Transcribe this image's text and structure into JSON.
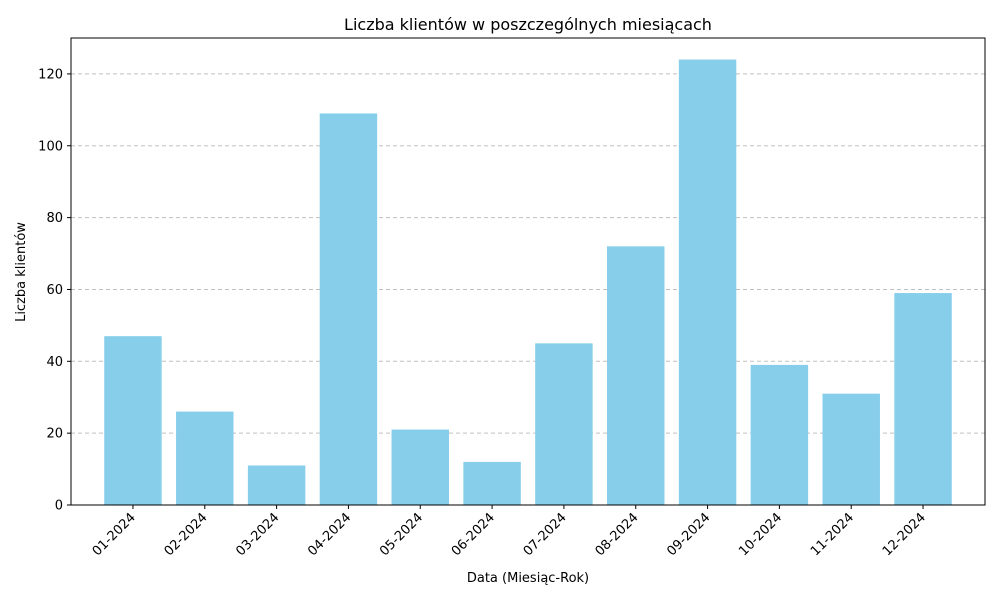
{
  "chart_data": {
    "type": "bar",
    "title": "Liczba klientów w poszczególnych miesiącach",
    "xlabel": "Data (Miesiąc-Rok)",
    "ylabel": "Liczba klientów",
    "categories": [
      "01-2024",
      "02-2024",
      "03-2024",
      "04-2024",
      "05-2024",
      "06-2024",
      "07-2024",
      "08-2024",
      "09-2024",
      "10-2024",
      "11-2024",
      "12-2024"
    ],
    "values": [
      47,
      26,
      11,
      109,
      21,
      12,
      45,
      72,
      124,
      39,
      31,
      59
    ],
    "ylim": [
      0,
      130
    ],
    "yticks": [
      0,
      20,
      40,
      60,
      80,
      100,
      120
    ],
    "grid": "y",
    "bar_color": "#87ceeb",
    "grid_color": "#c0c0c0"
  }
}
